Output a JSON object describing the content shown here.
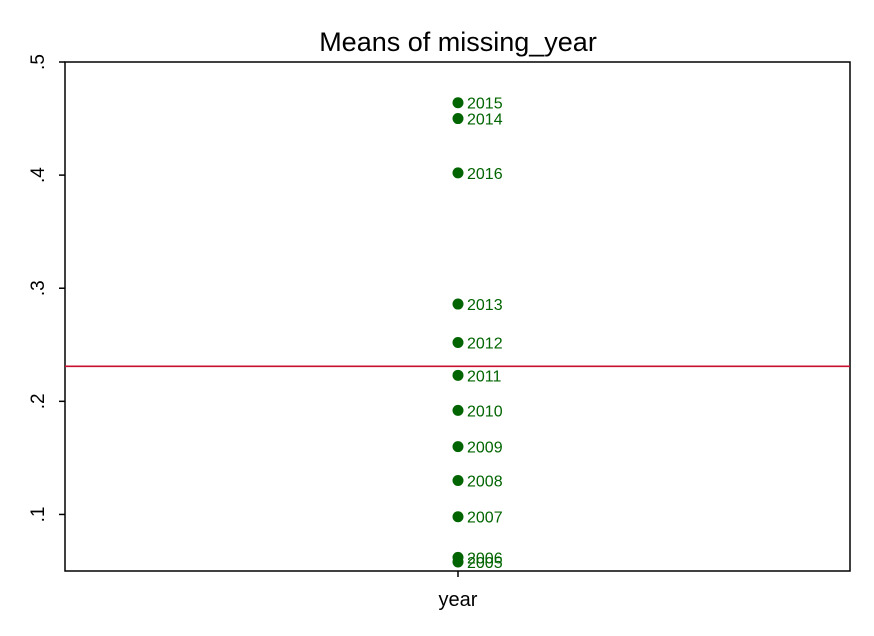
{
  "chart_data": {
    "type": "scatter",
    "title": "Means of missing_year",
    "xlabel": "year",
    "ylabel": "",
    "ylim": [
      0.05,
      0.5
    ],
    "yticks": [
      ".1",
      ".2",
      ".3",
      ".4",
      ".5"
    ],
    "ytick_values": [
      0.1,
      0.2,
      0.3,
      0.4,
      0.5
    ],
    "grid": false,
    "reference_line": {
      "y": 0.231,
      "color": "#c8102e"
    },
    "marker_color": "#006400",
    "series": [
      {
        "x": "year",
        "points": [
          {
            "label": "2005",
            "value": 0.058
          },
          {
            "label": "2006",
            "value": 0.062
          },
          {
            "label": "2007",
            "value": 0.098
          },
          {
            "label": "2008",
            "value": 0.13
          },
          {
            "label": "2009",
            "value": 0.16
          },
          {
            "label": "2010",
            "value": 0.192
          },
          {
            "label": "2011",
            "value": 0.223
          },
          {
            "label": "2012",
            "value": 0.252
          },
          {
            "label": "2013",
            "value": 0.286
          },
          {
            "label": "2014",
            "value": 0.45
          },
          {
            "label": "2015",
            "value": 0.464
          },
          {
            "label": "2016",
            "value": 0.402
          }
        ]
      }
    ]
  }
}
